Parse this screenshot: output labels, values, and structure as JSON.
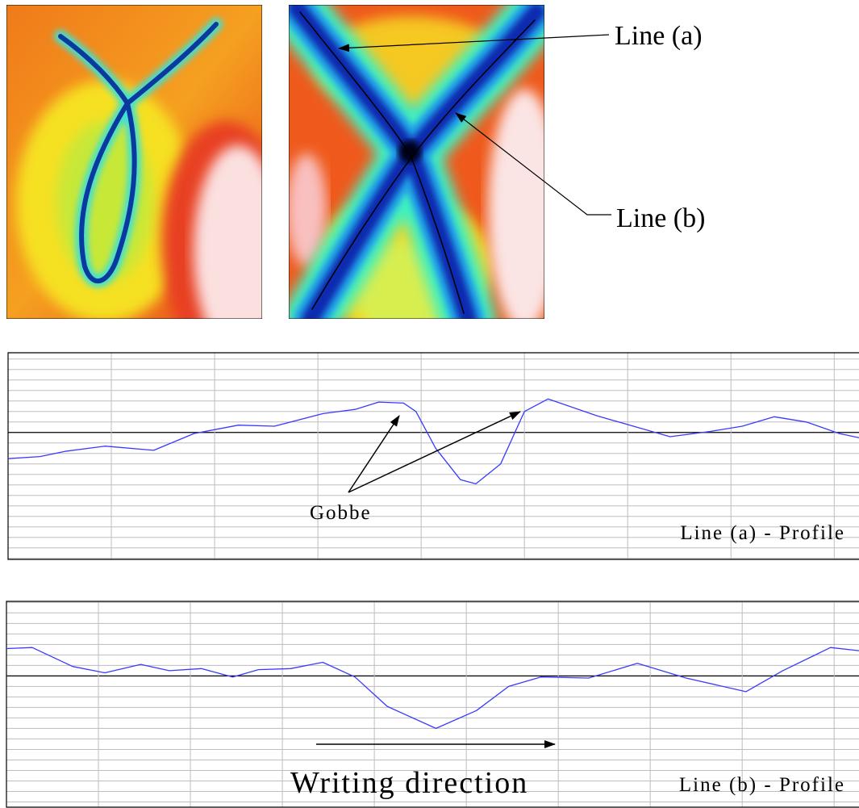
{
  "images": {
    "line_a": "Line (a)",
    "line_b": "Line (b)"
  },
  "chart_data": [
    {
      "type": "line",
      "x": [
        0,
        0.31,
        0.55,
        0.94,
        1.41,
        1.8,
        2.23,
        2.58,
        3.05,
        3.36,
        3.59,
        3.83,
        3.95,
        4.14,
        4.38,
        4.53,
        4.77,
        5,
        5.23,
        5.7,
        6.09,
        6.41,
        6.8,
        7.11,
        7.42,
        7.73,
        8.05,
        8.24
      ],
      "series": [
        {
          "color": "#3a3aff",
          "values": [
            -2.5,
            -2.3,
            -1.8,
            -1.3,
            -1.7,
            -0.1,
            0.7,
            0.6,
            1.8,
            2.2,
            2.9,
            2.8,
            2,
            -1.5,
            -4.5,
            -4.9,
            -3,
            2,
            3.2,
            1.6,
            0.5,
            -0.4,
            0.1,
            0.6,
            1.5,
            1,
            -0.1,
            -0.5
          ]
        }
      ],
      "xlim": [
        0,
        8.24
      ],
      "ylim": [
        -12.1,
        7.6
      ],
      "xticks": [
        1,
        2,
        3,
        4,
        5,
        6,
        7,
        8
      ],
      "yticks": [
        -12,
        -11,
        -10,
        -9,
        -8,
        -7,
        -6,
        -5,
        -4,
        -3,
        -2,
        -1,
        0,
        1,
        2,
        3,
        4,
        5,
        6,
        7
      ],
      "grid": true,
      "annotation": "Gobbe",
      "label": "Line (a) - Profile"
    },
    {
      "type": "line",
      "x": [
        0,
        0.28,
        0.72,
        1.07,
        1.46,
        1.77,
        2.12,
        2.46,
        2.74,
        3.09,
        3.44,
        3.79,
        4.14,
        4.67,
        5.11,
        5.46,
        5.81,
        6.33,
        6.86,
        7.39,
        8.04,
        8.44,
        8.96,
        9.27
      ],
      "series": [
        {
          "color": "#3a3aff",
          "values": [
            2.6,
            2.7,
            0.9,
            0.3,
            1.1,
            0.5,
            0.7,
            -0.1,
            0.6,
            0.7,
            1.3,
            -0.1,
            -2.9,
            -5,
            -3.3,
            -1,
            -0.1,
            -0.2,
            1.2,
            -0.2,
            -1.5,
            0.5,
            2.7,
            2.4
          ]
        }
      ],
      "xlim": [
        0,
        9.27
      ],
      "ylim": [
        -12.5,
        7.1
      ],
      "xticks": [
        1,
        2,
        3,
        4,
        5,
        6,
        7,
        8,
        9
      ],
      "yticks": [
        -12,
        -11,
        -10,
        -9,
        -8,
        -7,
        -6,
        -5,
        -4,
        -3,
        -2,
        -1,
        0,
        1,
        2,
        3,
        4,
        5,
        6,
        7
      ],
      "grid": true,
      "annotation": "Writing direction",
      "label": "Line (b) - Profile"
    }
  ]
}
